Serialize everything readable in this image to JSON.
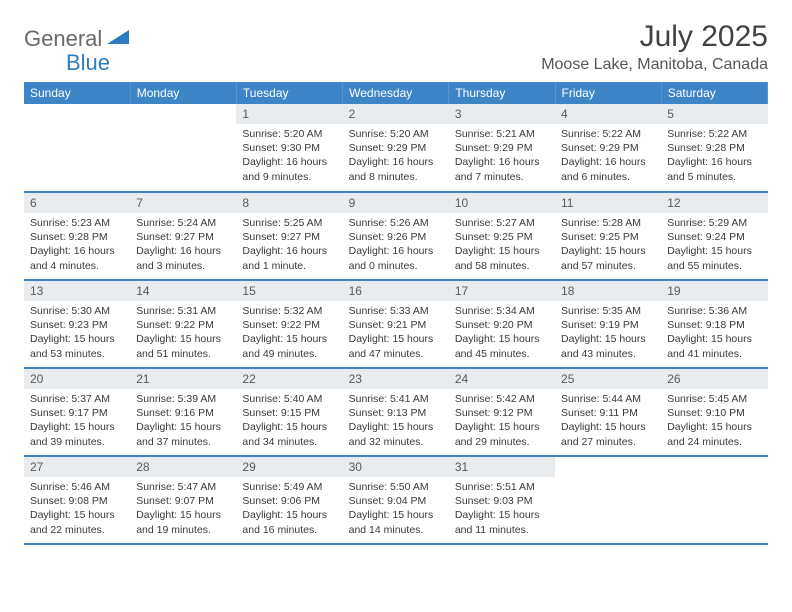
{
  "logo": {
    "general": "General",
    "blue": "Blue"
  },
  "title": "July 2025",
  "location": "Moose Lake, Manitoba, Canada",
  "colors": {
    "header_bg": "#3d85c6",
    "header_text": "#ffffff",
    "daynum_bg": "#e8ecef",
    "border": "#3d85c6",
    "logo_gray": "#6a6a6a",
    "logo_blue": "#2f7bbf"
  },
  "weekdays": [
    "Sunday",
    "Monday",
    "Tuesday",
    "Wednesday",
    "Thursday",
    "Friday",
    "Saturday"
  ],
  "weeks": [
    [
      null,
      null,
      {
        "d": "1",
        "sr": "Sunrise: 5:20 AM",
        "ss": "Sunset: 9:30 PM",
        "dl1": "Daylight: 16 hours",
        "dl2": "and 9 minutes."
      },
      {
        "d": "2",
        "sr": "Sunrise: 5:20 AM",
        "ss": "Sunset: 9:29 PM",
        "dl1": "Daylight: 16 hours",
        "dl2": "and 8 minutes."
      },
      {
        "d": "3",
        "sr": "Sunrise: 5:21 AM",
        "ss": "Sunset: 9:29 PM",
        "dl1": "Daylight: 16 hours",
        "dl2": "and 7 minutes."
      },
      {
        "d": "4",
        "sr": "Sunrise: 5:22 AM",
        "ss": "Sunset: 9:29 PM",
        "dl1": "Daylight: 16 hours",
        "dl2": "and 6 minutes."
      },
      {
        "d": "5",
        "sr": "Sunrise: 5:22 AM",
        "ss": "Sunset: 9:28 PM",
        "dl1": "Daylight: 16 hours",
        "dl2": "and 5 minutes."
      }
    ],
    [
      {
        "d": "6",
        "sr": "Sunrise: 5:23 AM",
        "ss": "Sunset: 9:28 PM",
        "dl1": "Daylight: 16 hours",
        "dl2": "and 4 minutes."
      },
      {
        "d": "7",
        "sr": "Sunrise: 5:24 AM",
        "ss": "Sunset: 9:27 PM",
        "dl1": "Daylight: 16 hours",
        "dl2": "and 3 minutes."
      },
      {
        "d": "8",
        "sr": "Sunrise: 5:25 AM",
        "ss": "Sunset: 9:27 PM",
        "dl1": "Daylight: 16 hours",
        "dl2": "and 1 minute."
      },
      {
        "d": "9",
        "sr": "Sunrise: 5:26 AM",
        "ss": "Sunset: 9:26 PM",
        "dl1": "Daylight: 16 hours",
        "dl2": "and 0 minutes."
      },
      {
        "d": "10",
        "sr": "Sunrise: 5:27 AM",
        "ss": "Sunset: 9:25 PM",
        "dl1": "Daylight: 15 hours",
        "dl2": "and 58 minutes."
      },
      {
        "d": "11",
        "sr": "Sunrise: 5:28 AM",
        "ss": "Sunset: 9:25 PM",
        "dl1": "Daylight: 15 hours",
        "dl2": "and 57 minutes."
      },
      {
        "d": "12",
        "sr": "Sunrise: 5:29 AM",
        "ss": "Sunset: 9:24 PM",
        "dl1": "Daylight: 15 hours",
        "dl2": "and 55 minutes."
      }
    ],
    [
      {
        "d": "13",
        "sr": "Sunrise: 5:30 AM",
        "ss": "Sunset: 9:23 PM",
        "dl1": "Daylight: 15 hours",
        "dl2": "and 53 minutes."
      },
      {
        "d": "14",
        "sr": "Sunrise: 5:31 AM",
        "ss": "Sunset: 9:22 PM",
        "dl1": "Daylight: 15 hours",
        "dl2": "and 51 minutes."
      },
      {
        "d": "15",
        "sr": "Sunrise: 5:32 AM",
        "ss": "Sunset: 9:22 PM",
        "dl1": "Daylight: 15 hours",
        "dl2": "and 49 minutes."
      },
      {
        "d": "16",
        "sr": "Sunrise: 5:33 AM",
        "ss": "Sunset: 9:21 PM",
        "dl1": "Daylight: 15 hours",
        "dl2": "and 47 minutes."
      },
      {
        "d": "17",
        "sr": "Sunrise: 5:34 AM",
        "ss": "Sunset: 9:20 PM",
        "dl1": "Daylight: 15 hours",
        "dl2": "and 45 minutes."
      },
      {
        "d": "18",
        "sr": "Sunrise: 5:35 AM",
        "ss": "Sunset: 9:19 PM",
        "dl1": "Daylight: 15 hours",
        "dl2": "and 43 minutes."
      },
      {
        "d": "19",
        "sr": "Sunrise: 5:36 AM",
        "ss": "Sunset: 9:18 PM",
        "dl1": "Daylight: 15 hours",
        "dl2": "and 41 minutes."
      }
    ],
    [
      {
        "d": "20",
        "sr": "Sunrise: 5:37 AM",
        "ss": "Sunset: 9:17 PM",
        "dl1": "Daylight: 15 hours",
        "dl2": "and 39 minutes."
      },
      {
        "d": "21",
        "sr": "Sunrise: 5:39 AM",
        "ss": "Sunset: 9:16 PM",
        "dl1": "Daylight: 15 hours",
        "dl2": "and 37 minutes."
      },
      {
        "d": "22",
        "sr": "Sunrise: 5:40 AM",
        "ss": "Sunset: 9:15 PM",
        "dl1": "Daylight: 15 hours",
        "dl2": "and 34 minutes."
      },
      {
        "d": "23",
        "sr": "Sunrise: 5:41 AM",
        "ss": "Sunset: 9:13 PM",
        "dl1": "Daylight: 15 hours",
        "dl2": "and 32 minutes."
      },
      {
        "d": "24",
        "sr": "Sunrise: 5:42 AM",
        "ss": "Sunset: 9:12 PM",
        "dl1": "Daylight: 15 hours",
        "dl2": "and 29 minutes."
      },
      {
        "d": "25",
        "sr": "Sunrise: 5:44 AM",
        "ss": "Sunset: 9:11 PM",
        "dl1": "Daylight: 15 hours",
        "dl2": "and 27 minutes."
      },
      {
        "d": "26",
        "sr": "Sunrise: 5:45 AM",
        "ss": "Sunset: 9:10 PM",
        "dl1": "Daylight: 15 hours",
        "dl2": "and 24 minutes."
      }
    ],
    [
      {
        "d": "27",
        "sr": "Sunrise: 5:46 AM",
        "ss": "Sunset: 9:08 PM",
        "dl1": "Daylight: 15 hours",
        "dl2": "and 22 minutes."
      },
      {
        "d": "28",
        "sr": "Sunrise: 5:47 AM",
        "ss": "Sunset: 9:07 PM",
        "dl1": "Daylight: 15 hours",
        "dl2": "and 19 minutes."
      },
      {
        "d": "29",
        "sr": "Sunrise: 5:49 AM",
        "ss": "Sunset: 9:06 PM",
        "dl1": "Daylight: 15 hours",
        "dl2": "and 16 minutes."
      },
      {
        "d": "30",
        "sr": "Sunrise: 5:50 AM",
        "ss": "Sunset: 9:04 PM",
        "dl1": "Daylight: 15 hours",
        "dl2": "and 14 minutes."
      },
      {
        "d": "31",
        "sr": "Sunrise: 5:51 AM",
        "ss": "Sunset: 9:03 PM",
        "dl1": "Daylight: 15 hours",
        "dl2": "and 11 minutes."
      },
      null,
      null
    ]
  ]
}
